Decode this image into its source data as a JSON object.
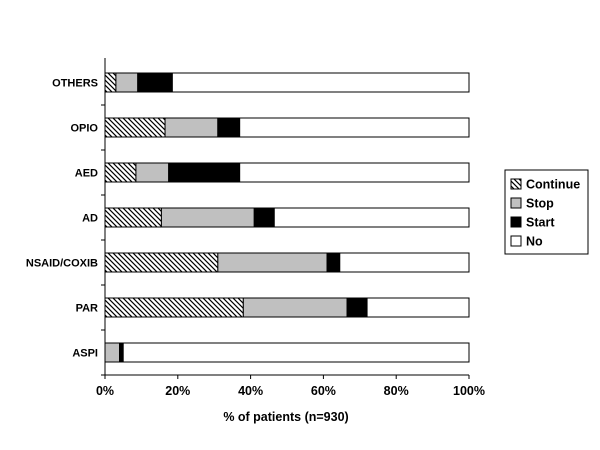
{
  "chart_data": {
    "type": "bar",
    "orientation": "horizontal",
    "stacked": true,
    "categories": [
      "ASPI",
      "PAR",
      "NSAID/COXIB",
      "AD",
      "AED",
      "OPIO",
      "OTHERS"
    ],
    "series": [
      {
        "name": "Continue",
        "pattern": "hatch",
        "color": "#000000",
        "values": [
          0,
          38,
          31,
          15.5,
          8.5,
          16.5,
          3
        ]
      },
      {
        "name": "Stop",
        "pattern": "solid",
        "color": "#c0c0c0",
        "values": [
          4,
          28.5,
          30,
          25.5,
          9,
          14.5,
          6
        ]
      },
      {
        "name": "Start",
        "pattern": "solid",
        "color": "#000000",
        "values": [
          1,
          5.5,
          3.5,
          5.5,
          19.5,
          6,
          9.5
        ]
      },
      {
        "name": "No",
        "pattern": "solid",
        "color": "#ffffff",
        "values": [
          95,
          28,
          35.5,
          53.5,
          63,
          63,
          81.5
        ]
      }
    ],
    "xlabel": "% of patients (n=930)",
    "ylabel": "",
    "xlim": [
      0,
      100
    ],
    "x_ticks": [
      "0%",
      "20%",
      "40%",
      "60%",
      "80%",
      "100%"
    ],
    "grid": false,
    "legend_position": "right"
  }
}
